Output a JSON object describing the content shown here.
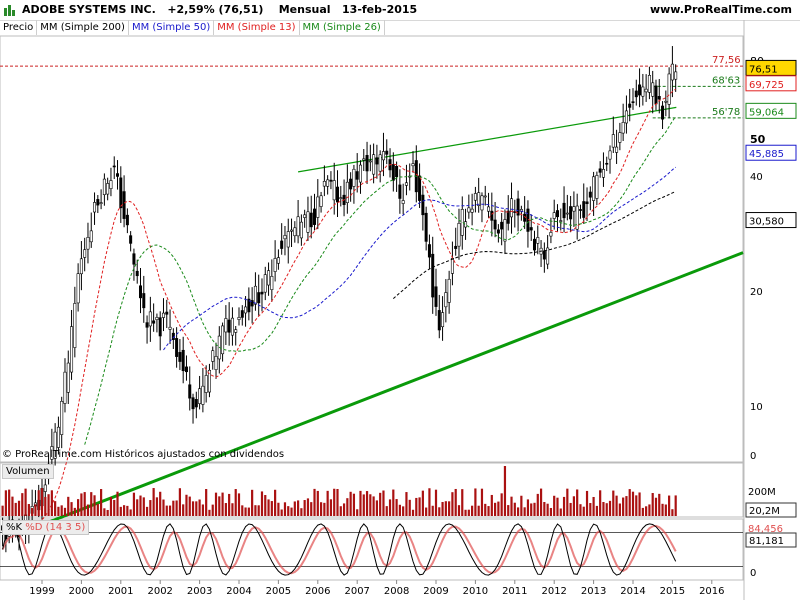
{
  "header": {
    "title": "ADOBE SYSTEMS INC.",
    "change": "+2,59% (76,51)",
    "period": "Mensual",
    "date": "13-feb-2015",
    "site": "www.ProRealTime.com"
  },
  "legend": {
    "price": "Precio",
    "ma200": "MM (Simple 200)",
    "ma50": "MM (Simple 50)",
    "ma13": "MM (Simple 13)",
    "ma26": "MM (Simple 26)"
  },
  "colors": {
    "ma200": "#000000",
    "ma50": "#1a1acc",
    "ma13": "#e02020",
    "ma26": "#1a8a1a",
    "trendline": "#0a9a0a",
    "resistance": "#cc2222",
    "volume": "#aa1111",
    "stoch_k": "#000000",
    "stoch_d": "#e05050"
  },
  "footer": "© ProRealTime.com Históricos ajustados con dividendos",
  "volume_label": "Volumen",
  "stoch_label_k": "%K",
  "stoch_label_d": "%D (14 3 5)",
  "chart_data": [
    {
      "type": "candlestick",
      "title": "ADOBE SYSTEMS INC.",
      "x_labels": [
        "1999",
        "2000",
        "2001",
        "2002",
        "2003",
        "2004",
        "2005",
        "2006",
        "2007",
        "2008",
        "2009",
        "2010",
        "2011",
        "2012",
        "2013",
        "2014",
        "2015",
        "2016"
      ],
      "y_ticks": [
        0,
        10,
        20,
        30,
        40,
        50,
        80
      ],
      "y_scale": "log",
      "last_price": 76.51,
      "price_series": [
        [
          1998.0,
          4.6
        ],
        [
          1998.5,
          4.8
        ],
        [
          1999.0,
          5.5
        ],
        [
          1999.5,
          9
        ],
        [
          1999.8,
          14
        ],
        [
          2000.0,
          22
        ],
        [
          2000.3,
          30
        ],
        [
          2000.6,
          37
        ],
        [
          2000.9,
          42
        ],
        [
          2001.1,
          34
        ],
        [
          2001.4,
          24
        ],
        [
          2001.7,
          17
        ],
        [
          2002.0,
          16
        ],
        [
          2002.3,
          17
        ],
        [
          2002.6,
          13
        ],
        [
          2003.0,
          10
        ],
        [
          2003.3,
          12
        ],
        [
          2003.7,
          16
        ],
        [
          2004.0,
          17
        ],
        [
          2004.4,
          19
        ],
        [
          2004.8,
          21
        ],
        [
          2005.0,
          25
        ],
        [
          2005.3,
          28
        ],
        [
          2005.7,
          30
        ],
        [
          2006.0,
          32
        ],
        [
          2006.3,
          38
        ],
        [
          2006.7,
          35
        ],
        [
          2007.0,
          40
        ],
        [
          2007.3,
          43
        ],
        [
          2007.6,
          44
        ],
        [
          2007.8,
          48
        ],
        [
          2008.0,
          40
        ],
        [
          2008.2,
          35
        ],
        [
          2008.5,
          42
        ],
        [
          2008.8,
          30
        ],
        [
          2009.0,
          20
        ],
        [
          2009.2,
          16
        ],
        [
          2009.5,
          25
        ],
        [
          2009.8,
          32
        ],
        [
          2010.1,
          35
        ],
        [
          2010.4,
          33
        ],
        [
          2010.7,
          28
        ],
        [
          2010.9,
          32
        ],
        [
          2011.2,
          34
        ],
        [
          2011.5,
          29
        ],
        [
          2011.8,
          24
        ],
        [
          2012.0,
          30
        ],
        [
          2012.3,
          33
        ],
        [
          2012.6,
          31
        ],
        [
          2012.9,
          34
        ],
        [
          2013.2,
          40
        ],
        [
          2013.5,
          46
        ],
        [
          2013.8,
          55
        ],
        [
          2014.0,
          62
        ],
        [
          2014.3,
          68
        ],
        [
          2014.6,
          70
        ],
        [
          2014.8,
          58
        ],
        [
          2015.0,
          72
        ],
        [
          2015.1,
          76.51
        ]
      ],
      "moving_averages": [
        {
          "name": "MM (Simple 13)",
          "value": 69.725
        },
        {
          "name": "MM (Simple 26)",
          "value": 59.064
        },
        {
          "name": "MM (Simple 50)",
          "value": 45.885
        },
        {
          "name": "MM (Simple 200)",
          "value": 30.58
        }
      ],
      "levels": [
        {
          "label": "77,56",
          "value": 77.56
        },
        {
          "label": "68'63",
          "value": 68.63
        },
        {
          "label": "56'78",
          "value": 56.78
        }
      ]
    },
    {
      "type": "bar",
      "title": "Volumen",
      "y_ticks": [
        "200M",
        "20,2M"
      ],
      "last_value_label": "20,2M"
    },
    {
      "type": "line",
      "title": "%K %D (14 3 5)",
      "series": [
        {
          "name": "%K",
          "last": 81.181
        },
        {
          "name": "%D",
          "last": 84.456
        }
      ],
      "labels": {
        "k": "81,181",
        "d": "84,456"
      }
    }
  ]
}
